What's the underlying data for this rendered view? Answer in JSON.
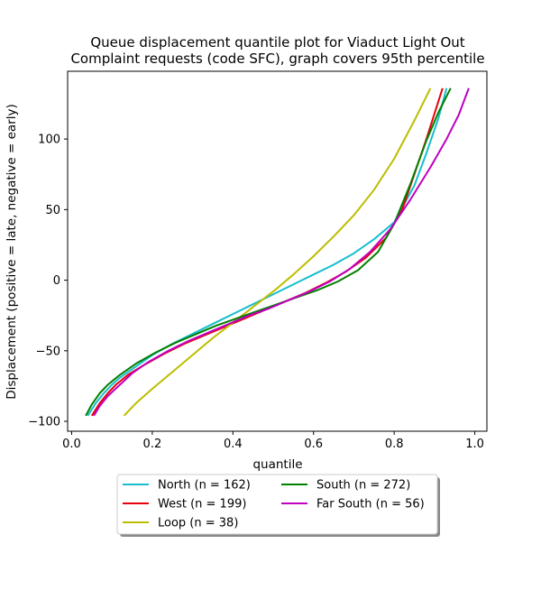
{
  "chart_data": {
    "type": "line",
    "title": [
      "Queue displacement quantile plot for Viaduct Light Out",
      "Complaint  requests (code SFC), graph covers 95th percentile"
    ],
    "xlabel": "quantile",
    "ylabel": "Displacement (positive = late, negative = early)",
    "xlim": [
      -0.01,
      1.03
    ],
    "ylim": [
      -107,
      148
    ],
    "xticks": [
      0.0,
      0.2,
      0.4,
      0.6,
      0.8,
      1.0
    ],
    "xtick_labels": [
      "0.0",
      "0.2",
      "0.4",
      "0.6",
      "0.8",
      "1.0"
    ],
    "yticks": [
      -100,
      -50,
      0,
      50,
      100
    ],
    "ytick_labels": [
      "−100",
      "−50",
      "0",
      "50",
      "100"
    ],
    "grid": false,
    "legend_position": "below plot, centered, 2 columns",
    "series": [
      {
        "name": "North (n = 162)",
        "color": "#17becf",
        "x": [
          0.04,
          0.06,
          0.08,
          0.1,
          0.12,
          0.15,
          0.2,
          0.25,
          0.3,
          0.35,
          0.4,
          0.45,
          0.5,
          0.55,
          0.6,
          0.65,
          0.7,
          0.75,
          0.8,
          0.85,
          0.88,
          0.91,
          0.93
        ],
        "y": [
          -96,
          -87,
          -80,
          -74,
          -69,
          -63,
          -53,
          -45,
          -38,
          -31,
          -24,
          -17,
          -10,
          -3,
          4,
          11,
          19,
          29,
          41,
          67,
          90,
          115,
          136
        ]
      },
      {
        "name": "West (n = 199)",
        "color": "#e8000b",
        "x": [
          0.05,
          0.07,
          0.09,
          0.11,
          0.14,
          0.18,
          0.23,
          0.28,
          0.33,
          0.38,
          0.43,
          0.48,
          0.53,
          0.58,
          0.63,
          0.68,
          0.73,
          0.78,
          0.82,
          0.85,
          0.88,
          0.9,
          0.92
        ],
        "y": [
          -96,
          -87,
          -80,
          -74,
          -67,
          -60,
          -52,
          -45,
          -39,
          -33,
          -27,
          -21,
          -15,
          -9,
          -2,
          6,
          16,
          30,
          50,
          75,
          100,
          118,
          136
        ]
      },
      {
        "name": "Loop (n = 38)",
        "color": "#bcbd00",
        "x": [
          0.13,
          0.16,
          0.2,
          0.25,
          0.3,
          0.35,
          0.4,
          0.45,
          0.5,
          0.55,
          0.6,
          0.65,
          0.7,
          0.75,
          0.8,
          0.85,
          0.89
        ],
        "y": [
          -96,
          -87,
          -77,
          -65,
          -53,
          -41,
          -30,
          -19,
          -8,
          4,
          17,
          31,
          46,
          64,
          86,
          113,
          136
        ]
      },
      {
        "name": "South (n = 272)",
        "color": "#008000",
        "x": [
          0.035,
          0.05,
          0.07,
          0.09,
          0.12,
          0.16,
          0.21,
          0.26,
          0.31,
          0.36,
          0.41,
          0.46,
          0.51,
          0.56,
          0.61,
          0.66,
          0.71,
          0.76,
          0.8,
          0.84,
          0.88,
          0.91,
          0.94
        ],
        "y": [
          -96,
          -88,
          -80,
          -74,
          -67,
          -59,
          -51,
          -44,
          -38,
          -32,
          -27,
          -22,
          -17,
          -12,
          -7,
          -1,
          7,
          20,
          40,
          68,
          99,
          119,
          136
        ]
      },
      {
        "name": "Far South (n = 56)",
        "color": "#c000c0",
        "x": [
          0.055,
          0.07,
          0.09,
          0.12,
          0.15,
          0.19,
          0.24,
          0.29,
          0.34,
          0.39,
          0.44,
          0.49,
          0.54,
          0.59,
          0.64,
          0.69,
          0.74,
          0.79,
          0.84,
          0.89,
          0.93,
          0.96,
          0.985
        ],
        "y": [
          -96,
          -89,
          -82,
          -74,
          -66,
          -58,
          -50,
          -43,
          -37,
          -31,
          -25,
          -20,
          -14,
          -8,
          -1,
          8,
          20,
          36,
          57,
          80,
          100,
          117,
          136
        ]
      }
    ]
  }
}
